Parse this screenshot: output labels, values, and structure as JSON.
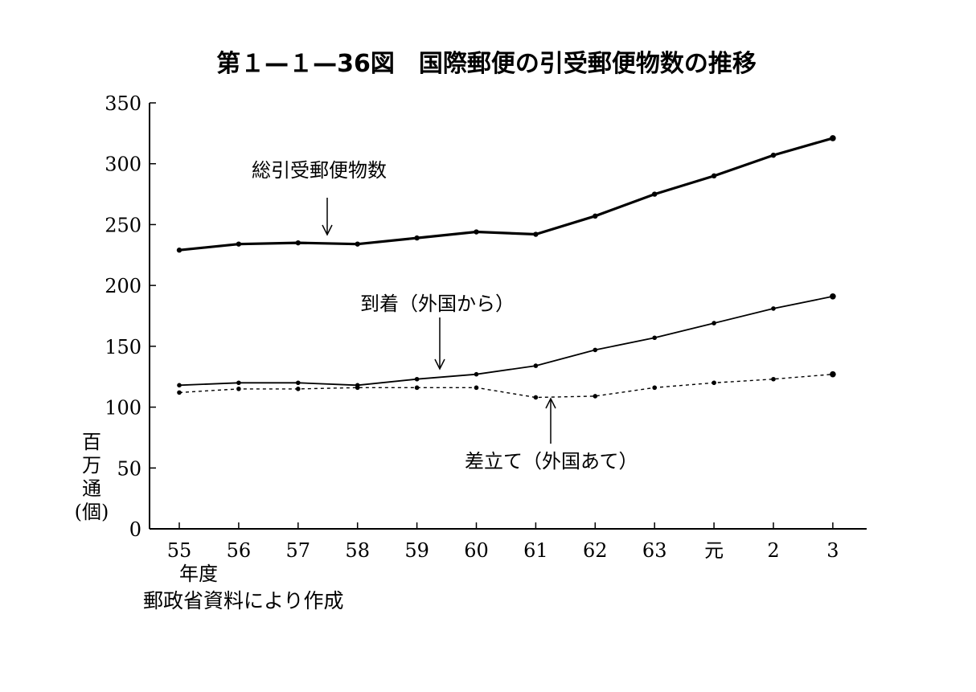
{
  "chart_data": {
    "type": "line",
    "title": "第１—１—36図　国際郵便の引受郵便物数の推移",
    "ylabel": [
      "百",
      "万",
      "通",
      "(個)"
    ],
    "xlabel": "年度",
    "source": "郵政省資料により作成",
    "ylim": [
      0,
      350
    ],
    "yticks": [
      0,
      50,
      100,
      150,
      200,
      250,
      300,
      350
    ],
    "categories": [
      "55",
      "56",
      "57",
      "58",
      "59",
      "60",
      "61",
      "62",
      "63",
      "元",
      "2",
      "3"
    ],
    "grid": false,
    "series": [
      {
        "name": "総引受郵便物数",
        "style": "bold",
        "values": [
          229,
          234,
          235,
          234,
          239,
          244,
          242,
          257,
          275,
          290,
          307,
          321
        ]
      },
      {
        "name": "到着（外国から）",
        "style": "solid",
        "values": [
          118,
          120,
          120,
          118,
          123,
          127,
          134,
          147,
          157,
          169,
          181,
          191
        ]
      },
      {
        "name": "差立て（外国あて）",
        "style": "dashed",
        "values": [
          112,
          115,
          115,
          116,
          116,
          116,
          108,
          109,
          116,
          120,
          123,
          127
        ]
      }
    ]
  }
}
